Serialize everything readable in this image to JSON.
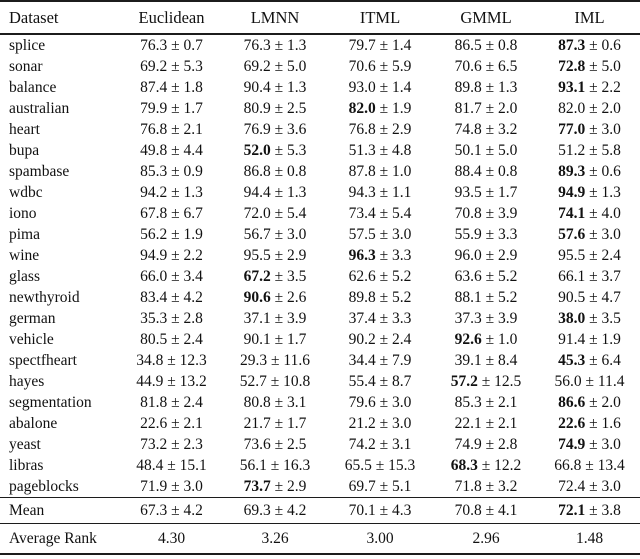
{
  "pm": "±",
  "table": {
    "columns": [
      "Dataset",
      "Euclidean",
      "LMNN",
      "ITML",
      "GMML",
      "IML"
    ],
    "rows": [
      {
        "dataset": "splice",
        "scores": [
          [
            "76.3",
            "0.7"
          ],
          [
            "76.3",
            "1.3"
          ],
          [
            "79.7",
            "1.4"
          ],
          [
            "86.5",
            "0.8"
          ],
          [
            "87.3",
            "0.6"
          ]
        ],
        "best": 4
      },
      {
        "dataset": "sonar",
        "scores": [
          [
            "69.2",
            "5.3"
          ],
          [
            "69.2",
            "5.0"
          ],
          [
            "70.6",
            "5.9"
          ],
          [
            "70.6",
            "6.5"
          ],
          [
            "72.8",
            "5.0"
          ]
        ],
        "best": 4
      },
      {
        "dataset": "balance",
        "scores": [
          [
            "87.4",
            "1.8"
          ],
          [
            "90.4",
            "1.3"
          ],
          [
            "93.0",
            "1.4"
          ],
          [
            "89.8",
            "1.3"
          ],
          [
            "93.1",
            "2.2"
          ]
        ],
        "best": 4
      },
      {
        "dataset": "australian",
        "scores": [
          [
            "79.9",
            "1.7"
          ],
          [
            "80.9",
            "2.5"
          ],
          [
            "82.0",
            "1.9"
          ],
          [
            "81.7",
            "2.0"
          ],
          [
            "82.0",
            "2.0"
          ]
        ],
        "best": 2
      },
      {
        "dataset": "heart",
        "scores": [
          [
            "76.8",
            "2.1"
          ],
          [
            "76.9",
            "3.6"
          ],
          [
            "76.8",
            "2.9"
          ],
          [
            "74.8",
            "3.2"
          ],
          [
            "77.0",
            "3.0"
          ]
        ],
        "best": 4
      },
      {
        "dataset": "bupa",
        "scores": [
          [
            "49.8",
            "4.4"
          ],
          [
            "52.0",
            "5.3"
          ],
          [
            "51.3",
            "4.8"
          ],
          [
            "50.1",
            "5.0"
          ],
          [
            "51.2",
            "5.8"
          ]
        ],
        "best": 1
      },
      {
        "dataset": "spambase",
        "scores": [
          [
            "85.3",
            "0.9"
          ],
          [
            "86.8",
            "0.8"
          ],
          [
            "87.8",
            "1.0"
          ],
          [
            "88.4",
            "0.8"
          ],
          [
            "89.3",
            "0.6"
          ]
        ],
        "best": 4
      },
      {
        "dataset": "wdbc",
        "scores": [
          [
            "94.2",
            "1.3"
          ],
          [
            "94.4",
            "1.3"
          ],
          [
            "94.3",
            "1.1"
          ],
          [
            "93.5",
            "1.7"
          ],
          [
            "94.9",
            "1.3"
          ]
        ],
        "best": 4
      },
      {
        "dataset": "iono",
        "scores": [
          [
            "67.8",
            "6.7"
          ],
          [
            "72.0",
            "5.4"
          ],
          [
            "73.4",
            "5.4"
          ],
          [
            "70.8",
            "3.9"
          ],
          [
            "74.1",
            "4.0"
          ]
        ],
        "best": 4
      },
      {
        "dataset": "pima",
        "scores": [
          [
            "56.2",
            "1.9"
          ],
          [
            "56.7",
            "3.0"
          ],
          [
            "57.5",
            "3.0"
          ],
          [
            "55.9",
            "3.3"
          ],
          [
            "57.6",
            "3.0"
          ]
        ],
        "best": 4
      },
      {
        "dataset": "wine",
        "scores": [
          [
            "94.9",
            "2.2"
          ],
          [
            "95.5",
            "2.9"
          ],
          [
            "96.3",
            "3.3"
          ],
          [
            "96.0",
            "2.9"
          ],
          [
            "95.5",
            "2.4"
          ]
        ],
        "best": 2
      },
      {
        "dataset": "glass",
        "scores": [
          [
            "66.0",
            "3.4"
          ],
          [
            "67.2",
            "3.5"
          ],
          [
            "62.6",
            "5.2"
          ],
          [
            "63.6",
            "5.2"
          ],
          [
            "66.1",
            "3.7"
          ]
        ],
        "best": 1
      },
      {
        "dataset": "newthyroid",
        "scores": [
          [
            "83.4",
            "4.2"
          ],
          [
            "90.6",
            "2.6"
          ],
          [
            "89.8",
            "5.2"
          ],
          [
            "88.1",
            "5.2"
          ],
          [
            "90.5",
            "4.7"
          ]
        ],
        "best": 1
      },
      {
        "dataset": "german",
        "scores": [
          [
            "35.3",
            "2.8"
          ],
          [
            "37.1",
            "3.9"
          ],
          [
            "37.4",
            "3.3"
          ],
          [
            "37.3",
            "3.9"
          ],
          [
            "38.0",
            "3.5"
          ]
        ],
        "best": 4
      },
      {
        "dataset": "vehicle",
        "scores": [
          [
            "80.5",
            "2.4"
          ],
          [
            "90.1",
            "1.7"
          ],
          [
            "90.2",
            "2.4"
          ],
          [
            "92.6",
            "1.0"
          ],
          [
            "91.4",
            "1.9"
          ]
        ],
        "best": 3
      },
      {
        "dataset": "spectfheart",
        "scores": [
          [
            "34.8",
            "12.3"
          ],
          [
            "29.3",
            "11.6"
          ],
          [
            "34.4",
            "7.9"
          ],
          [
            "39.1",
            "8.4"
          ],
          [
            "45.3",
            "6.4"
          ]
        ],
        "best": 4
      },
      {
        "dataset": "hayes",
        "scores": [
          [
            "44.9",
            "13.2"
          ],
          [
            "52.7",
            "10.8"
          ],
          [
            "55.4",
            "8.7"
          ],
          [
            "57.2",
            "12.5"
          ],
          [
            "56.0",
            "11.4"
          ]
        ],
        "best": 3
      },
      {
        "dataset": "segmentation",
        "scores": [
          [
            "81.8",
            "2.4"
          ],
          [
            "80.8",
            "3.1"
          ],
          [
            "79.6",
            "3.0"
          ],
          [
            "85.3",
            "2.1"
          ],
          [
            "86.6",
            "2.0"
          ]
        ],
        "best": 4
      },
      {
        "dataset": "abalone",
        "scores": [
          [
            "22.6",
            "2.1"
          ],
          [
            "21.7",
            "1.7"
          ],
          [
            "21.2",
            "3.0"
          ],
          [
            "22.1",
            "2.1"
          ],
          [
            "22.6",
            "1.6"
          ]
        ],
        "best": 4
      },
      {
        "dataset": "yeast",
        "scores": [
          [
            "73.2",
            "2.3"
          ],
          [
            "73.6",
            "2.5"
          ],
          [
            "74.2",
            "3.1"
          ],
          [
            "74.9",
            "2.8"
          ],
          [
            "74.9",
            "3.0"
          ]
        ],
        "best": 4
      },
      {
        "dataset": "libras",
        "scores": [
          [
            "48.4",
            "15.1"
          ],
          [
            "56.1",
            "16.3"
          ],
          [
            "65.5",
            "15.3"
          ],
          [
            "68.3",
            "12.2"
          ],
          [
            "66.8",
            "13.4"
          ]
        ],
        "best": 3
      },
      {
        "dataset": "pageblocks",
        "scores": [
          [
            "71.9",
            "3.0"
          ],
          [
            "73.7",
            "2.9"
          ],
          [
            "69.7",
            "5.1"
          ],
          [
            "71.8",
            "3.2"
          ],
          [
            "72.4",
            "3.0"
          ]
        ],
        "best": 1
      }
    ],
    "mean": {
      "label": "Mean",
      "scores": [
        [
          "67.3",
          "4.2"
        ],
        [
          "69.3",
          "4.2"
        ],
        [
          "70.1",
          "4.3"
        ],
        [
          "70.8",
          "4.1"
        ],
        [
          "72.1",
          "3.8"
        ]
      ],
      "best": 4
    },
    "average_rank": {
      "label": "Average Rank",
      "values": [
        "4.30",
        "3.26",
        "3.00",
        "2.96",
        "1.48"
      ]
    }
  }
}
